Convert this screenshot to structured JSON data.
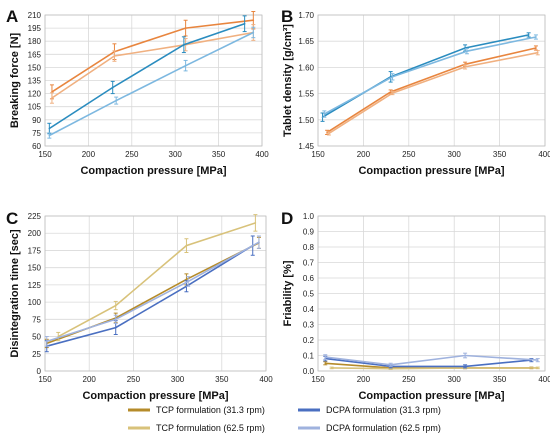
{
  "legend": {
    "items": [
      {
        "label": "TCP formulation (31.3 rpm)",
        "color": "#b58b2a"
      },
      {
        "label": "DCPA formulation (31.3 rpm)",
        "color": "#4a6fc1"
      },
      {
        "label": "TCP formulation (62.5 rpm)",
        "color": "#d8c27a"
      },
      {
        "label": "DCPA formulation (62.5 rpm)",
        "color": "#9fb2de"
      }
    ]
  },
  "chart_data": [
    {
      "panel": "A",
      "type": "line",
      "xlabel": "Compaction pressure [MPa]",
      "ylabel": "Breaking force [N]",
      "xlim": [
        150,
        400
      ],
      "ylim": [
        60,
        210
      ],
      "xticks": [
        150,
        200,
        250,
        300,
        350,
        400
      ],
      "yticks": [
        60,
        75,
        90,
        105,
        120,
        135,
        150,
        165,
        180,
        195,
        210
      ],
      "grid": true,
      "series": [
        {
          "color": "#e8853e",
          "x": [
            158,
            230,
            312,
            390
          ],
          "y": [
            122,
            168,
            195,
            204
          ],
          "err": [
            8,
            9,
            9,
            10
          ]
        },
        {
          "color": "#f0b080",
          "x": [
            158,
            230,
            312,
            390
          ],
          "y": [
            115,
            163,
            176,
            190
          ],
          "err": [
            6,
            6,
            7,
            9
          ]
        },
        {
          "color": "#2a8cbf",
          "x": [
            155,
            228,
            310,
            380
          ],
          "y": [
            80,
            127,
            176,
            200
          ],
          "err": [
            6,
            7,
            9,
            9
          ]
        },
        {
          "color": "#7db8e0",
          "x": [
            155,
            232,
            312,
            390
          ],
          "y": [
            72,
            112,
            152,
            190
          ],
          "err": [
            3,
            4,
            6,
            6
          ]
        }
      ]
    },
    {
      "panel": "B",
      "type": "line",
      "xlabel": "Compaction pressure [MPa]",
      "ylabel": "Tablet density [g/cm³]",
      "xlim": [
        150,
        400
      ],
      "ylim": [
        1.45,
        1.7
      ],
      "xticks": [
        150,
        200,
        250,
        300,
        350,
        400
      ],
      "yticks": [
        "1.45",
        "1.50",
        "1.55",
        "1.60",
        "1.65",
        "1.70"
      ],
      "grid": true,
      "series": [
        {
          "color": "#e8853e",
          "x": [
            160,
            230,
            312,
            390
          ],
          "y": [
            1.476,
            1.553,
            1.606,
            1.637
          ],
          "err": [
            0.004,
            0.004,
            0.004,
            0.004
          ]
        },
        {
          "color": "#f0b080",
          "x": [
            162,
            232,
            312,
            392
          ],
          "y": [
            1.474,
            1.551,
            1.601,
            1.628
          ],
          "err": [
            0.003,
            0.003,
            0.004,
            0.004
          ]
        },
        {
          "color": "#2a8cbf",
          "x": [
            155,
            230,
            312,
            382
          ],
          "y": [
            1.505,
            1.582,
            1.637,
            1.662
          ],
          "err": [
            0.008,
            0.01,
            0.006,
            0.004
          ]
        },
        {
          "color": "#7db8e0",
          "x": [
            157,
            232,
            314,
            390
          ],
          "y": [
            1.511,
            1.582,
            1.631,
            1.658
          ],
          "err": [
            0.006,
            0.006,
            0.005,
            0.004
          ]
        }
      ]
    },
    {
      "panel": "C",
      "type": "line",
      "xlabel": "Compaction pressure [MPa]",
      "ylabel": "Disintegration time [sec]",
      "xlim": [
        150,
        400
      ],
      "ylim": [
        0,
        225
      ],
      "xticks": [
        150,
        200,
        250,
        300,
        350,
        400
      ],
      "yticks": [
        0,
        25,
        50,
        75,
        100,
        125,
        150,
        175,
        200,
        225
      ],
      "grid": true,
      "series": [
        {
          "color": "#b58b2a",
          "x": [
            152,
            230,
            310,
            392
          ],
          "y": [
            40,
            77,
            133,
            186
          ],
          "err": [
            6,
            7,
            8,
            8
          ]
        },
        {
          "color": "#d8c27a",
          "x": [
            165,
            230,
            310,
            388
          ],
          "y": [
            50,
            95,
            182,
            215
          ],
          "err": [
            6,
            6,
            10,
            12
          ]
        },
        {
          "color": "#4a6fc1",
          "x": [
            152,
            230,
            310,
            385
          ],
          "y": [
            36,
            63,
            123,
            182
          ],
          "err": [
            8,
            10,
            8,
            14
          ]
        },
        {
          "color": "#9fb2de",
          "x": [
            152,
            230,
            312,
            392
          ],
          "y": [
            43,
            75,
            130,
            187
          ],
          "err": [
            7,
            6,
            7,
            9
          ]
        }
      ]
    },
    {
      "panel": "D",
      "type": "line",
      "xlabel": "Compaction pressure [MPa]",
      "ylabel": "Friability [%]",
      "xlim": [
        150,
        400
      ],
      "ylim": [
        0,
        1.0
      ],
      "xticks": [
        150,
        200,
        250,
        300,
        350,
        400
      ],
      "yticks": [
        "0.0",
        "0.1",
        "0.2",
        "0.3",
        "0.4",
        "0.5",
        "0.6",
        "0.7",
        "0.8",
        "0.9",
        "1.0"
      ],
      "grid": true,
      "series": [
        {
          "color": "#b58b2a",
          "x": [
            158,
            230,
            312,
            385
          ],
          "y": [
            0.05,
            0.02,
            0.02,
            0.02
          ],
          "err": [
            0.01,
            0.005,
            0.005,
            0.005
          ]
        },
        {
          "color": "#d8c27a",
          "x": [
            165,
            230,
            312,
            392
          ],
          "y": [
            0.02,
            0.015,
            0.02,
            0.02
          ],
          "err": [
            0.005,
            0.005,
            0.005,
            0.005
          ]
        },
        {
          "color": "#4a6fc1",
          "x": [
            158,
            230,
            312,
            385
          ],
          "y": [
            0.08,
            0.03,
            0.03,
            0.07
          ],
          "err": [
            0.015,
            0.01,
            0.01,
            0.01
          ]
        },
        {
          "color": "#9fb2de",
          "x": [
            158,
            230,
            312,
            392
          ],
          "y": [
            0.09,
            0.04,
            0.1,
            0.07
          ],
          "err": [
            0.015,
            0.01,
            0.015,
            0.01
          ]
        }
      ]
    }
  ]
}
